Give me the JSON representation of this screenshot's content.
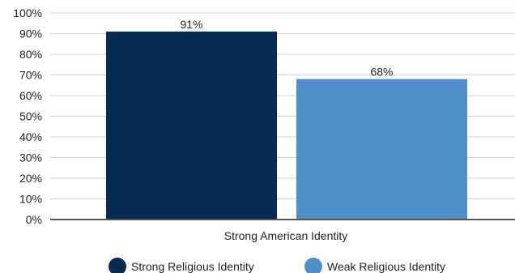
{
  "chart_data": {
    "type": "bar",
    "title": "",
    "xlabel": "",
    "ylabel": "",
    "categories": [
      "Strong American Identity"
    ],
    "series": [
      {
        "name": "Strong Religious Identity",
        "values": [
          91
        ],
        "color": "#062b55"
      },
      {
        "name": "Weak Religious Identity",
        "values": [
          68
        ],
        "color": "#4f8fcc"
      }
    ],
    "data_labels": [
      "91%",
      "68%"
    ],
    "ylim": [
      0,
      100
    ],
    "y_ticks": [
      {
        "value": 0,
        "label": "0%"
      },
      {
        "value": 10,
        "label": "10%"
      },
      {
        "value": 20,
        "label": "20%"
      },
      {
        "value": 30,
        "label": "30%"
      },
      {
        "value": 40,
        "label": "40%"
      },
      {
        "value": 50,
        "label": "50%"
      },
      {
        "value": 60,
        "label": "60%"
      },
      {
        "value": 70,
        "label": "70%"
      },
      {
        "value": 80,
        "label": "80%"
      },
      {
        "value": 90,
        "label": "90%"
      },
      {
        "value": 100,
        "label": "100%"
      }
    ],
    "grid": true,
    "legend_position": "bottom"
  }
}
